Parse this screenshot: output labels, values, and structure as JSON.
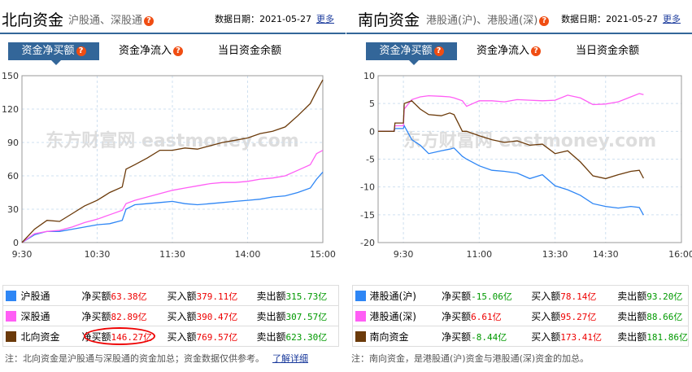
{
  "north": {
    "title": "北向资金",
    "subtitle": "沪股通、深股通",
    "date_label": "数据日期：",
    "date": "2021-05-27",
    "more": "更多",
    "tabs": [
      "资金净买额",
      "资金净流入",
      "当日资金余额"
    ],
    "rows": [
      {
        "name": "沪股通",
        "color": "#2e86f5",
        "net_label": "净买额",
        "net": "63.38亿",
        "buy_label": "买入额",
        "buy": "379.11亿",
        "sell_label": "卖出额",
        "sell": "315.73亿"
      },
      {
        "name": "深股通",
        "color": "#ff5ef5",
        "net_label": "净买额",
        "net": "82.89亿",
        "buy_label": "买入额",
        "buy": "390.47亿",
        "sell_label": "卖出额",
        "sell": "307.57亿"
      },
      {
        "name": "北向资金",
        "color": "#6b3a0a",
        "net_label": "净买额",
        "net": "146.27亿",
        "buy_label": "买入额",
        "buy": "769.57亿",
        "sell_label": "卖出额",
        "sell": "623.30亿"
      }
    ],
    "note": "注：北向资金是沪股通与深股通的资金加总；资金数据仅供参考。",
    "note_link": "了解详细"
  },
  "south": {
    "title": "南向资金",
    "subtitle": "港股通(沪)、港股通(深)",
    "date_label": "数据日期：",
    "date": "2021-05-27",
    "more": "更多",
    "tabs": [
      "资金净买额",
      "资金净流入",
      "当日资金余额"
    ],
    "rows": [
      {
        "name": "港股通(沪)",
        "color": "#2e86f5",
        "net_label": "净买额",
        "net": "-15.06亿",
        "buy_label": "买入额",
        "buy": "78.14亿",
        "sell_label": "卖出额",
        "sell": "93.20亿"
      },
      {
        "name": "港股通(深)",
        "color": "#ff5ef5",
        "net_label": "净买额",
        "net": "6.61亿",
        "buy_label": "买入额",
        "buy": "95.27亿",
        "sell_label": "卖出额",
        "sell": "88.66亿"
      },
      {
        "name": "南向资金",
        "color": "#6b3a0a",
        "net_label": "净买额",
        "net": "-8.44亿",
        "buy_label": "买入额",
        "buy": "173.41亿",
        "sell_label": "卖出额",
        "sell": "181.86亿"
      }
    ],
    "note": "注：南向资金，是港股通(沪)资金与港股通(深)资金的加总。"
  },
  "watermark": "东方财富网 eastmoney.com",
  "chart_data": [
    {
      "type": "line",
      "xticks": [
        "9:30",
        "10:30",
        "11:30",
        "14:00",
        "15:00"
      ],
      "ylim": [
        0,
        150
      ],
      "yticks": [
        0,
        30,
        60,
        90,
        120,
        150
      ],
      "grid": true,
      "x": [
        "9:30",
        "9:40",
        "9:50",
        "10:00",
        "10:10",
        "10:20",
        "10:30",
        "10:40",
        "10:50",
        "10:53",
        "11:00",
        "11:10",
        "11:20",
        "11:30",
        "13:10",
        "13:20",
        "13:30",
        "13:40",
        "13:50",
        "14:00",
        "14:10",
        "14:20",
        "14:30",
        "14:40",
        "14:50",
        "14:55",
        "15:00"
      ],
      "series": [
        {
          "color": "#2e86f5",
          "values": [
            0,
            7,
            10,
            10,
            12,
            14,
            16,
            17,
            20,
            30,
            34,
            35,
            36,
            37,
            35,
            34,
            35,
            36,
            37,
            38,
            39,
            41,
            42,
            45,
            49,
            57,
            63.38
          ]
        },
        {
          "color": "#ff5ef5",
          "values": [
            0,
            8,
            10,
            11,
            14,
            18,
            21,
            25,
            29,
            35,
            38,
            41,
            44,
            47,
            49,
            51,
            53,
            54,
            54,
            55,
            57,
            58,
            60,
            65,
            70,
            80,
            82.89
          ]
        },
        {
          "color": "#6b3a0a",
          "values": [
            0,
            12,
            20,
            19,
            26,
            33,
            38,
            45,
            50,
            66,
            70,
            76,
            83,
            83,
            85,
            84,
            87,
            90,
            92,
            94,
            98,
            100,
            104,
            114,
            125,
            136,
            146.27
          ]
        }
      ]
    },
    {
      "type": "line",
      "xticks": [
        "9:30",
        "11:00",
        "13:30",
        "14:30",
        "16:00"
      ],
      "xlim": [
        "9:00",
        "16:00"
      ],
      "ylim": [
        -20,
        10
      ],
      "yticks": [
        10,
        5,
        0,
        -5,
        -10,
        -15,
        -20
      ],
      "grid": true,
      "x": [
        "9:00",
        "9:19",
        "9:20",
        "9:30",
        "9:31",
        "9:40",
        "9:50",
        "10:00",
        "10:15",
        "10:25",
        "10:30",
        "10:40",
        "10:45",
        "11:00",
        "11:15",
        "11:30",
        "11:45",
        "12:00",
        "13:15",
        "13:30",
        "13:45",
        "14:00",
        "14:15",
        "14:30",
        "14:45",
        "15:00",
        "15:10",
        "15:15"
      ],
      "series": [
        {
          "color": "#2e86f5",
          "values": [
            0,
            0,
            0.5,
            0.5,
            1,
            -1.5,
            -2.5,
            -4,
            -3.5,
            -3.2,
            -3,
            -4.5,
            -5,
            -6.2,
            -7,
            -7.2,
            -7.5,
            -8.5,
            -7.8,
            -9.8,
            -10.5,
            -11.5,
            -13,
            -13.5,
            -13.8,
            -13.5,
            -13.7,
            -15.06
          ]
        },
        {
          "color": "#ff5ef5",
          "values": [
            0,
            0,
            1,
            1,
            4,
            5.7,
            6.2,
            6.4,
            6.3,
            6.2,
            6,
            5.5,
            4.5,
            5.5,
            5.5,
            5.3,
            5.7,
            5.6,
            5.5,
            5.6,
            6.5,
            6,
            4.8,
            4.9,
            5.3,
            6.2,
            6.8,
            6.61
          ]
        },
        {
          "color": "#6b3a0a",
          "values": [
            0,
            0,
            1.5,
            1.5,
            5,
            5.5,
            4,
            3,
            2.8,
            3.3,
            3,
            0,
            0,
            -0.8,
            -1.5,
            -2,
            -1.7,
            -2.5,
            -2.3,
            -4,
            -3.5,
            -5.5,
            -8,
            -8.5,
            -7.8,
            -7.2,
            -7,
            -8.44
          ]
        }
      ]
    }
  ]
}
